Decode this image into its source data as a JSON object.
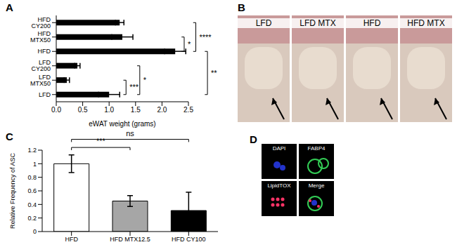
{
  "chart_data": [
    {
      "panel": "A",
      "type": "bar",
      "orientation": "horizontal",
      "categories": [
        "HFD CY200",
        "HFD MTX50",
        "HFD",
        "LFD CY200",
        "LFD MTX50",
        "LFD"
      ],
      "values": [
        1.2,
        1.25,
        2.25,
        0.4,
        0.2,
        1.0
      ],
      "errors": [
        0.08,
        0.2,
        0.2,
        0.05,
        0.05,
        0.2
      ],
      "color": "#000000",
      "xlabel": "eWAT weight (grams)",
      "xlim": [
        0,
        2.5
      ],
      "xticks": [
        {
          "value": 0,
          "label": "0.0"
        },
        0.5,
        {
          "value": 1,
          "label": "1.0"
        },
        1.5,
        {
          "value": 2,
          "label": "2.0"
        },
        2.5
      ],
      "annotations": [
        {
          "text": "***",
          "from": "LFD MTX50",
          "to": "LFD"
        },
        {
          "text": "*",
          "from": "LFD CY200",
          "to": "LFD"
        },
        {
          "text": "*",
          "from": "HFD MTX50",
          "to": "HFD"
        },
        {
          "text": "****",
          "from": "HFD CY200",
          "to": "HFD"
        },
        {
          "text": "**",
          "from": "HFD",
          "to": "LFD"
        }
      ]
    },
    {
      "panel": "C",
      "type": "bar",
      "categories": [
        "HFD",
        "HFD MTX12.5",
        "HFD CY100"
      ],
      "values": [
        1.0,
        0.45,
        0.31
      ],
      "errors": [
        0.13,
        0.08,
        0.27
      ],
      "colors": [
        "#ffffff",
        "#a6a6a6",
        "#000000"
      ],
      "ylabel": "Relative Frequency of ASC",
      "ylim": [
        0,
        1.2
      ],
      "yticks": [
        0,
        0.2,
        0.4,
        0.6,
        0.8,
        1,
        1.2
      ],
      "annotations": [
        {
          "text": "***",
          "from": "HFD",
          "to": "HFD MTX12.5"
        },
        {
          "text": "ns",
          "from": "HFD",
          "to": "HFD CY100"
        }
      ]
    }
  ],
  "images": [
    {
      "panel": "B",
      "labels": [
        "LFD",
        "LFD MTX",
        "HFD",
        "HFD MTX"
      ]
    },
    {
      "panel": "D",
      "labels": [
        "DAPI",
        "FABP4",
        "LipidTOX",
        "Merge"
      ]
    }
  ]
}
